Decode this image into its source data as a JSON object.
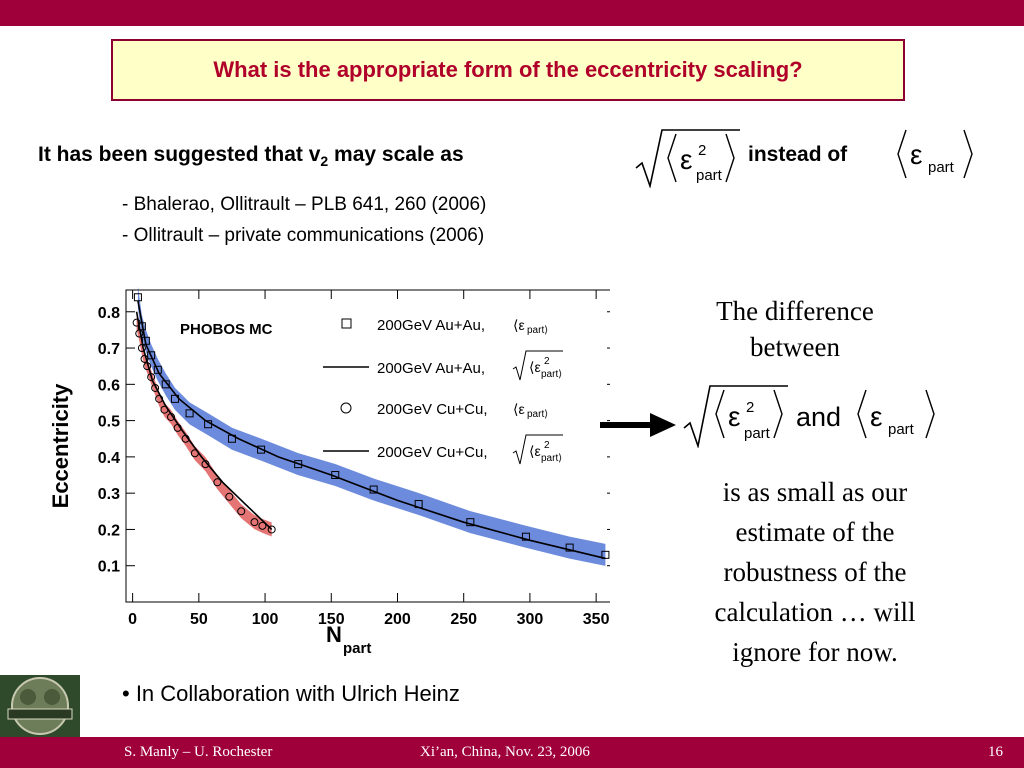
{
  "title": "What is the appropriate form of the eccentricity scaling?",
  "suggestion": {
    "text_pre": "It has been suggested that v",
    "subscript": "2",
    "text_post": " may scale  as",
    "instead": "instead of"
  },
  "references": [
    "- Bhalerao, Ollitrault – PLB 641, 260 (2006)",
    "- Ollitrault – private communications (2006)"
  ],
  "math": {
    "epsilon": "ε",
    "sup2": "2",
    "part": "part",
    "and": "and"
  },
  "note": {
    "line1": "The difference",
    "line2": "between",
    "rest": [
      "is as small as our",
      "estimate of the",
      "robustness of the",
      "calculation … will",
      "ignore for now."
    ]
  },
  "bullet": "• In Collaboration with Ulrich Heinz",
  "footer": {
    "authors": "S. Manly – U. Rochester",
    "venue": "Xi’an, China, Nov. 23, 2006",
    "page": "16"
  },
  "colors": {
    "bar": "#a0003a",
    "title_text": "#b0002a",
    "title_bg": "#ffffc8",
    "au_band": "#3c64d2",
    "cu_band": "#dc4646"
  },
  "chart_data": {
    "type": "scatter",
    "annotation": "PHOBOS MC",
    "ylabel": "Eccentricity",
    "xlabel_main": "N",
    "xlabel_sub": "part",
    "xlim": [
      -5,
      365
    ],
    "ylim": [
      0,
      0.86
    ],
    "xticks": [
      0,
      50,
      100,
      150,
      200,
      250,
      300,
      350
    ],
    "yticks": [
      0.1,
      0.2,
      0.3,
      0.4,
      0.5,
      0.6,
      0.7,
      0.8
    ],
    "series": [
      {
        "name": "200GeV Au+Au,",
        "kind": "squares",
        "x": [
          4,
          7,
          10,
          14,
          19,
          25,
          32,
          43,
          57,
          75,
          97,
          125,
          153,
          182,
          216,
          255,
          297,
          330,
          357
        ],
        "y": [
          0.84,
          0.76,
          0.72,
          0.68,
          0.64,
          0.6,
          0.56,
          0.52,
          0.49,
          0.45,
          0.42,
          0.38,
          0.35,
          0.31,
          0.27,
          0.22,
          0.18,
          0.15,
          0.13
        ]
      },
      {
        "name": "200GeV Au+Au,",
        "kind": "line",
        "x": [
          4,
          10,
          20,
          35,
          55,
          80,
          110,
          150,
          200,
          250,
          300,
          357
        ],
        "y": [
          0.83,
          0.71,
          0.63,
          0.56,
          0.5,
          0.45,
          0.4,
          0.35,
          0.28,
          0.22,
          0.17,
          0.12
        ]
      },
      {
        "name": "200GeV Cu+Cu,",
        "kind": "circles",
        "x": [
          3,
          5,
          7,
          9,
          11,
          14,
          17,
          20,
          24,
          29,
          34,
          40,
          47,
          55,
          64,
          73,
          82,
          92,
          98,
          105
        ],
        "y": [
          0.77,
          0.74,
          0.7,
          0.67,
          0.65,
          0.62,
          0.59,
          0.56,
          0.53,
          0.51,
          0.48,
          0.45,
          0.41,
          0.38,
          0.33,
          0.29,
          0.25,
          0.22,
          0.21,
          0.2
        ]
      },
      {
        "name": "200GeV Cu+Cu,",
        "kind": "line",
        "x": [
          3,
          8,
          15,
          25,
          38,
          52,
          68,
          85,
          105
        ],
        "y": [
          0.8,
          0.7,
          0.61,
          0.54,
          0.47,
          0.4,
          0.33,
          0.27,
          0.2
        ]
      }
    ],
    "legend_position": "top-right"
  }
}
